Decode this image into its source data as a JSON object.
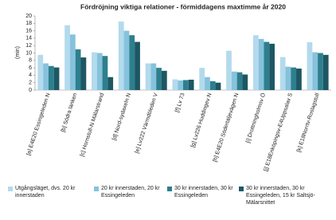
{
  "chart_data": {
    "type": "bar",
    "title": "Fördröjning viktiga relationer - förmiddagens maxtimme år 2020",
    "y_label": "(min)",
    "categories": [
      "[a] E4E20 Essingeleden N",
      "[b] Södra länken",
      "[c] Hornstull-N Mälarstrand",
      "[d] Nord-sydaxeln N",
      "[e] Lv222 Värmdöleden V",
      "[f] Lv 73",
      "[g] Lv226 Huddingev N",
      "[h] E4E20 Södertäljevägen N",
      "[i] Drottningholmsv Ö",
      "[j] E18Enköpingsv-E4Uppsalav S",
      "[k] E18Norrtv-Roslagstull"
    ],
    "series": [
      {
        "name": "Utgångsläget, dvs. 20 kr innerstaden",
        "color": "#b3daed",
        "values": [
          9.5,
          17.5,
          10.2,
          18.5,
          7.2,
          2.9,
          6.0,
          10.6,
          14.8,
          8.9,
          12.9
        ]
      },
      {
        "name": "20 kr innerstaden, 20 kr Essingeleden",
        "color": "#86c2dc",
        "values": [
          7.2,
          15.0,
          10.0,
          16.0,
          7.2,
          2.6,
          3.5,
          5.0,
          13.8,
          6.3,
          10.2
        ]
      },
      {
        "name": "30 kr innerstaden, 30 kr Essingeleden",
        "color": "#2e7f8e",
        "values": [
          6.5,
          11.0,
          9.2,
          14.8,
          6.0,
          2.7,
          2.4,
          4.8,
          13.0,
          6.1,
          10.0
        ]
      },
      {
        "name": "30 kr innerstaden, 30 kr Essingeleden, 15 kr Saltsjö-Mälarsnittet",
        "color": "#1d5763",
        "values": [
          6.1,
          8.8,
          3.5,
          13.0,
          5.2,
          2.8,
          2.0,
          4.2,
          12.5,
          5.8,
          9.5
        ]
      }
    ],
    "ylim": [
      0,
      20
    ],
    "yticks": [
      0,
      2,
      4,
      6,
      8,
      10,
      12,
      14,
      16,
      18,
      20
    ],
    "grid": false
  }
}
